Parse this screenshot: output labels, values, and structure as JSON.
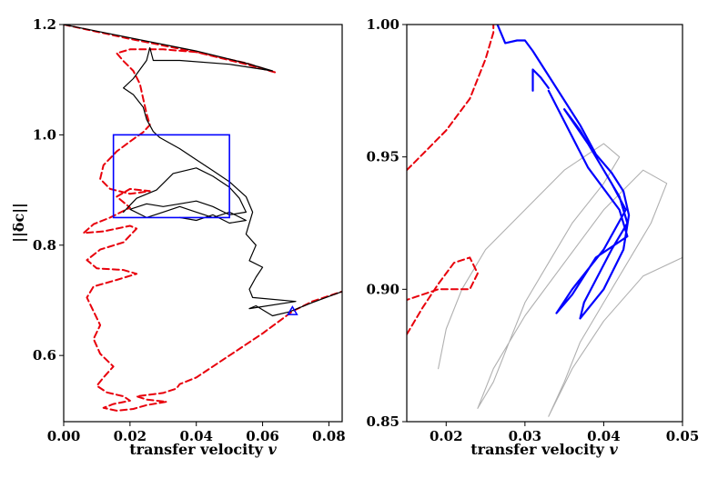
{
  "chart_data": [
    {
      "type": "line",
      "panel": "left",
      "xlabel": "transfer velocity",
      "xlabel_symbol": "v",
      "ylabel": "||δc||",
      "xlim": [
        0.0,
        0.084
      ],
      "ylim": [
        0.48,
        1.2
      ],
      "xticks": [
        0.0,
        0.02,
        0.04,
        0.06,
        0.08
      ],
      "xtick_labels": [
        "0.00",
        "0.02",
        "0.04",
        "0.06",
        "0.08"
      ],
      "yticks": [
        0.6,
        0.8,
        1.0,
        1.2
      ],
      "ytick_labels": [
        "0.6",
        "0.8",
        "1.0",
        "1.2"
      ],
      "colors": {
        "unstable": "#e8000b",
        "stable": "#000000",
        "box": "#0000ff",
        "marker": "#0000ff"
      },
      "series": [
        {
          "name": "unstable branch (dashed)",
          "style": "dashed",
          "points": [
            [
              0.0,
              1.2
            ],
            [
              0.02,
              1.174
            ],
            [
              0.04,
              1.15
            ],
            [
              0.055,
              1.128
            ],
            [
              0.064,
              1.113
            ],
            [
              0.055,
              1.13
            ],
            [
              0.04,
              1.15
            ],
            [
              0.03,
              1.155
            ],
            [
              0.02,
              1.155
            ],
            [
              0.016,
              1.148
            ],
            [
              0.018,
              1.134
            ],
            [
              0.021,
              1.116
            ],
            [
              0.023,
              1.092
            ],
            [
              0.024,
              1.065
            ],
            [
              0.025,
              1.038
            ],
            [
              0.026,
              1.018
            ],
            [
              0.024,
              1.005
            ],
            [
              0.02,
              0.988
            ],
            [
              0.016,
              0.97
            ],
            [
              0.012,
              0.945
            ],
            [
              0.011,
              0.92
            ],
            [
              0.014,
              0.902
            ],
            [
              0.02,
              0.893
            ],
            [
              0.026,
              0.898
            ],
            [
              0.02,
              0.902
            ],
            [
              0.016,
              0.888
            ],
            [
              0.02,
              0.868
            ],
            [
              0.014,
              0.85
            ],
            [
              0.009,
              0.838
            ],
            [
              0.006,
              0.822
            ],
            [
              0.012,
              0.825
            ],
            [
              0.02,
              0.835
            ],
            [
              0.022,
              0.83
            ],
            [
              0.018,
              0.805
            ],
            [
              0.011,
              0.792
            ],
            [
              0.007,
              0.773
            ],
            [
              0.01,
              0.758
            ],
            [
              0.018,
              0.755
            ],
            [
              0.022,
              0.748
            ],
            [
              0.016,
              0.737
            ],
            [
              0.009,
              0.725
            ],
            [
              0.007,
              0.705
            ],
            [
              0.009,
              0.68
            ],
            [
              0.011,
              0.655
            ],
            [
              0.009,
              0.63
            ],
            [
              0.011,
              0.603
            ],
            [
              0.015,
              0.58
            ],
            [
              0.012,
              0.56
            ],
            [
              0.01,
              0.545
            ],
            [
              0.013,
              0.533
            ],
            [
              0.018,
              0.526
            ],
            [
              0.02,
              0.518
            ],
            [
              0.015,
              0.512
            ],
            [
              0.012,
              0.505
            ],
            [
              0.016,
              0.5
            ],
            [
              0.021,
              0.503
            ],
            [
              0.025,
              0.51
            ],
            [
              0.031,
              0.516
            ],
            [
              0.025,
              0.52
            ],
            [
              0.022,
              0.526
            ],
            [
              0.03,
              0.532
            ],
            [
              0.034,
              0.54
            ],
            [
              0.035,
              0.548
            ],
            [
              0.04,
              0.56
            ],
            [
              0.05,
              0.6
            ],
            [
              0.06,
              0.64
            ],
            [
              0.069,
              0.68
            ],
            [
              0.075,
              0.698
            ],
            [
              0.084,
              0.716
            ]
          ]
        },
        {
          "name": "stable branch",
          "style": "solid",
          "points": [
            [
              0.0,
              1.2
            ],
            [
              0.02,
              1.176
            ],
            [
              0.04,
              1.152
            ],
            [
              0.055,
              1.13
            ],
            [
              0.063,
              1.116
            ],
            [
              0.05,
              1.128
            ],
            [
              0.035,
              1.135
            ],
            [
              0.027,
              1.135
            ],
            [
              0.026,
              1.158
            ],
            [
              0.025,
              1.135
            ],
            [
              0.021,
              1.102
            ],
            [
              0.018,
              1.085
            ],
            [
              0.021,
              1.073
            ],
            [
              0.024,
              1.05
            ],
            [
              0.025,
              1.028
            ],
            [
              0.027,
              1.006
            ],
            [
              0.029,
              0.995
            ],
            [
              0.035,
              0.975
            ],
            [
              0.04,
              0.955
            ],
            [
              0.045,
              0.935
            ],
            [
              0.05,
              0.915
            ],
            [
              0.055,
              0.888
            ],
            [
              0.057,
              0.86
            ],
            [
              0.055,
              0.82
            ],
            [
              0.058,
              0.8
            ],
            [
              0.056,
              0.772
            ],
            [
              0.06,
              0.76
            ],
            [
              0.058,
              0.742
            ],
            [
              0.056,
              0.72
            ],
            [
              0.057,
              0.705
            ],
            [
              0.07,
              0.698
            ],
            [
              0.056,
              0.685
            ],
            [
              0.058,
              0.69
            ],
            [
              0.063,
              0.672
            ],
            [
              0.068,
              0.679
            ],
            [
              0.075,
              0.696
            ],
            [
              0.084,
              0.716
            ]
          ]
        },
        {
          "name": "chaotic tangle (region shown in right panel)",
          "style": "solid",
          "points": [
            [
              0.018,
              0.86
            ],
            [
              0.022,
              0.885
            ],
            [
              0.028,
              0.9
            ],
            [
              0.033,
              0.93
            ],
            [
              0.04,
              0.94
            ],
            [
              0.045,
              0.925
            ],
            [
              0.05,
              0.905
            ],
            [
              0.053,
              0.885
            ],
            [
              0.055,
              0.86
            ],
            [
              0.05,
              0.855
            ],
            [
              0.045,
              0.87
            ],
            [
              0.04,
              0.88
            ],
            [
              0.035,
              0.875
            ],
            [
              0.03,
              0.87
            ],
            [
              0.025,
              0.875
            ],
            [
              0.02,
              0.865
            ],
            [
              0.025,
              0.85
            ],
            [
              0.03,
              0.86
            ],
            [
              0.035,
              0.87
            ],
            [
              0.04,
              0.86
            ],
            [
              0.045,
              0.85
            ],
            [
              0.05,
              0.86
            ],
            [
              0.055,
              0.845
            ],
            [
              0.05,
              0.84
            ],
            [
              0.045,
              0.855
            ],
            [
              0.04,
              0.845
            ],
            [
              0.035,
              0.85
            ]
          ]
        }
      ],
      "inset_box": {
        "x0": 0.015,
        "x1": 0.05,
        "y0": 0.85,
        "y1": 1.0
      },
      "marker": {
        "shape": "triangle",
        "x": 0.069,
        "y": 0.68
      }
    },
    {
      "type": "line",
      "panel": "right",
      "xlabel": "transfer velocity",
      "xlabel_symbol": "v",
      "xlim": [
        0.015,
        0.05
      ],
      "ylim": [
        0.85,
        1.0
      ],
      "xticks": [
        0.02,
        0.03,
        0.04,
        0.05
      ],
      "xtick_labels": [
        "0.02",
        "0.03",
        "0.04",
        "0.05"
      ],
      "yticks": [
        0.85,
        0.9,
        0.95,
        1.0
      ],
      "ytick_labels": [
        "0.85",
        "0.90",
        "0.95",
        "1.00"
      ],
      "colors": {
        "unstable": "#e8000b",
        "highlight": "#0000ff",
        "background": "#b0b0b0"
      },
      "series": [
        {
          "name": "unstable branch (dashed)",
          "style": "dashed",
          "points": [
            [
              0.015,
              0.945
            ],
            [
              0.017,
              0.951
            ],
            [
              0.02,
              0.96
            ],
            [
              0.023,
              0.972
            ],
            [
              0.025,
              0.987
            ],
            [
              0.026,
              0.997
            ],
            [
              0.026,
              1.0
            ]
          ]
        },
        {
          "name": "unstable loop (dashed)",
          "style": "dashed",
          "points": [
            [
              0.015,
              0.883
            ],
            [
              0.017,
              0.893
            ],
            [
              0.019,
              0.902
            ],
            [
              0.021,
              0.91
            ],
            [
              0.023,
              0.912
            ],
            [
              0.024,
              0.906
            ],
            [
              0.023,
              0.9
            ],
            [
              0.019,
              0.9
            ],
            [
              0.017,
              0.898
            ],
            [
              0.015,
              0.896
            ]
          ]
        },
        {
          "name": "highlighted trajectory",
          "style": "solid",
          "points": [
            [
              0.0265,
              1.0
            ],
            [
              0.0275,
              0.993
            ],
            [
              0.029,
              0.994
            ],
            [
              0.03,
              0.994
            ],
            [
              0.031,
              0.99
            ],
            [
              0.034,
              0.976
            ],
            [
              0.037,
              0.962
            ],
            [
              0.039,
              0.951
            ],
            [
              0.041,
              0.944
            ],
            [
              0.0425,
              0.937
            ],
            [
              0.0432,
              0.928
            ],
            [
              0.0425,
              0.915
            ],
            [
              0.04,
              0.9
            ],
            [
              0.037,
              0.889
            ],
            [
              0.0375,
              0.895
            ],
            [
              0.041,
              0.915
            ],
            [
              0.043,
              0.925
            ],
            [
              0.042,
              0.935
            ],
            [
              0.04,
              0.945
            ],
            [
              0.037,
              0.96
            ],
            [
              0.035,
              0.968
            ],
            [
              0.038,
              0.955
            ],
            [
              0.041,
              0.94
            ],
            [
              0.0428,
              0.93
            ],
            [
              0.04,
              0.915
            ],
            [
              0.036,
              0.9
            ],
            [
              0.034,
              0.891
            ],
            [
              0.036,
              0.898
            ],
            [
              0.039,
              0.912
            ],
            [
              0.043,
              0.92
            ],
            [
              0.042,
              0.93
            ],
            [
              0.038,
              0.946
            ],
            [
              0.033,
              0.975
            ]
          ]
        },
        {
          "name": "highlighted hook",
          "style": "solid",
          "points": [
            [
              0.031,
              0.975
            ],
            [
              0.031,
              0.983
            ],
            [
              0.032,
              0.98
            ],
            [
              0.033,
              0.976
            ]
          ]
        },
        {
          "name": "background trajectories",
          "style": "solid",
          "points": [
            [
              0.019,
              0.87
            ],
            [
              0.02,
              0.885
            ],
            [
              0.022,
              0.9
            ],
            [
              0.025,
              0.915
            ],
            [
              0.03,
              0.93
            ],
            [
              0.035,
              0.945
            ],
            [
              0.04,
              0.955
            ],
            [
              0.042,
              0.95
            ],
            [
              0.04,
              0.94
            ],
            [
              0.036,
              0.925
            ],
            [
              0.033,
              0.91
            ],
            [
              0.03,
              0.895
            ],
            [
              0.028,
              0.88
            ],
            [
              0.026,
              0.865
            ],
            [
              0.024,
              0.855
            ],
            [
              0.026,
              0.87
            ],
            [
              0.03,
              0.89
            ],
            [
              0.035,
              0.91
            ],
            [
              0.04,
              0.93
            ],
            [
              0.045,
              0.945
            ],
            [
              0.048,
              0.94
            ],
            [
              0.046,
              0.925
            ],
            [
              0.043,
              0.91
            ],
            [
              0.04,
              0.895
            ],
            [
              0.037,
              0.88
            ],
            [
              0.035,
              0.865
            ],
            [
              0.033,
              0.852
            ],
            [
              0.036,
              0.87
            ],
            [
              0.04,
              0.888
            ],
            [
              0.045,
              0.905
            ],
            [
              0.05,
              0.912
            ]
          ]
        }
      ]
    }
  ]
}
